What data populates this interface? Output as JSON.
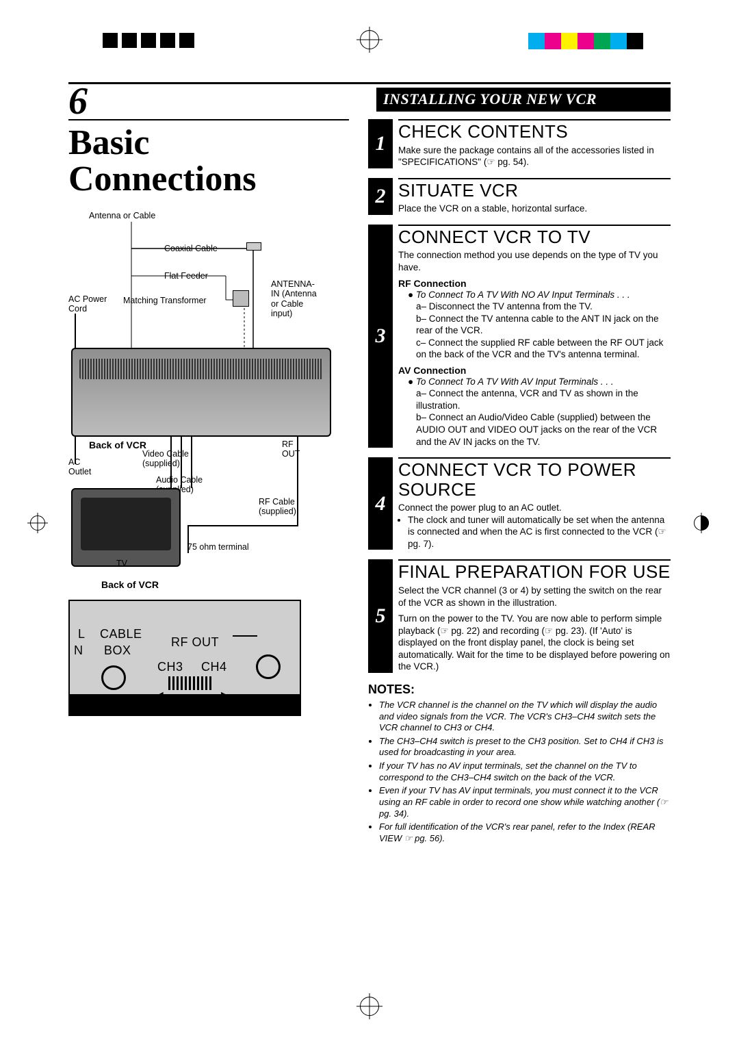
{
  "page": {
    "number": "6",
    "header_bar": "INSTALLING YOUR NEW VCR",
    "title_line1": "Basic",
    "title_line2": "Connections"
  },
  "print_marks": {
    "black_dot_count": 5,
    "colors": [
      "#00aeef",
      "#ec008c",
      "#fff200",
      "#ec008c",
      "#00a651",
      "#00aeef",
      "#000000"
    ]
  },
  "diagram_labels": {
    "antenna": "Antenna or Cable",
    "coax": "Coaxial Cable",
    "flat_feeder": "Flat Feeder",
    "match_xfmr": "Matching Transformer",
    "ac_cord": "AC Power\nCord",
    "ant_in": "ANTENNA-\nIN (Antenna\nor Cable\ninput)",
    "back_of_vcr": "Back of VCR",
    "video_cable": "Video Cable\n(supplied)",
    "audio_cable": "Audio Cable\n(supplied)",
    "rf_out": "RF\nOUT",
    "rf_cable": "RF Cable\n(supplied)",
    "ac_outlet": "AC\nOutlet",
    "ohm75": "75 ohm terminal",
    "tv": "TV",
    "back_of_vcr2": "Back of VCR"
  },
  "back_panel": {
    "l": "L",
    "n": "N",
    "cable": "CABLE",
    "box": "BOX",
    "rf": "RF OUT",
    "ch3": "CH3",
    "ch4": "CH4"
  },
  "steps": [
    {
      "num": "1",
      "title": "CHECK CONTENTS",
      "body": "Make sure the package contains all of the accessories listed in \"SPECIFICATIONS\" (☞ pg. 54)."
    },
    {
      "num": "2",
      "title": "SITUATE VCR",
      "body": "Place the VCR on a stable, horizontal surface."
    },
    {
      "num": "3",
      "title": "CONNECT VCR TO TV",
      "body": "The connection method you use depends on the type of TV you have.",
      "rf_head": "RF Connection",
      "rf_line": "To Connect To A TV With NO AV Input Terminals . . .",
      "rf_a": "a– Disconnect the TV antenna from the TV.",
      "rf_b": "b– Connect the TV antenna cable to the ANT IN jack on the rear of the VCR.",
      "rf_c": "c– Connect the supplied RF cable between the RF OUT jack on the back of the VCR and the TV's antenna terminal.",
      "av_head": "AV Connection",
      "av_line": "To Connect To A TV With AV Input Terminals . . .",
      "av_a": "a– Connect the antenna, VCR and TV as shown in the illustration.",
      "av_b": "b– Connect an Audio/Video Cable (supplied) between the AUDIO OUT and VIDEO OUT jacks on the rear of the VCR and the AV IN jacks on the TV."
    },
    {
      "num": "4",
      "title": "CONNECT VCR TO POWER SOURCE",
      "body": "Connect the power plug to an AC outlet.",
      "bullet": "The clock and tuner will automatically be set when the antenna is connected and when the AC is first connected to the VCR (☞ pg. 7)."
    },
    {
      "num": "5",
      "title": "FINAL PREPARATION FOR USE",
      "body": "Select the VCR channel (3 or 4) by setting the switch on the rear of the VCR as shown in the illustration.",
      "body2": "Turn on the power to the TV. You are now able to perform simple playback (☞ pg. 22) and recording (☞ pg. 23). (If 'Auto' is displayed on the front display panel, the clock is being set automatically. Wait for the time to be displayed before powering on the VCR.)"
    }
  ],
  "notes_title": "NOTES:",
  "notes": [
    "The VCR channel is the channel on the TV which will display the audio and video signals from the VCR. The VCR's CH3–CH4 switch sets the VCR channel to CH3 or CH4.",
    "The CH3–CH4 switch is preset to the CH3 position. Set to CH4 if CH3 is used for broadcasting in your area.",
    "If your TV has no AV input terminals, set the channel on the TV to correspond to the CH3–CH4 switch on the back of the VCR.",
    "Even if your TV has AV input terminals, you must connect it to the VCR using an RF cable in order to record one show while watching another (☞ pg. 34).",
    "For full identification of the VCR's rear panel, refer to the Index (REAR VIEW ☞ pg. 56)."
  ]
}
